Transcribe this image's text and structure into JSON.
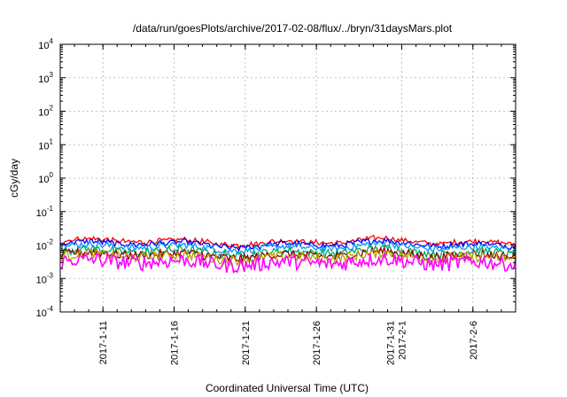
{
  "chart_data": {
    "type": "line",
    "title": "/data/run/goesPlots/archive/2017-02-08/flux/../bryn/31daysMars.plot",
    "xlabel": "Coordinated Universal Time (UTC)",
    "ylabel": "cGy/day",
    "yscale": "log",
    "ylim": [
      0.0001,
      10000
    ],
    "xlim": [
      "2017-01-08",
      "2017-02-09"
    ],
    "grid": true,
    "y_ticks": [
      {
        "base": "10",
        "exp": "-4",
        "value": 0.0001
      },
      {
        "base": "10",
        "exp": "-3",
        "value": 0.001
      },
      {
        "base": "10",
        "exp": "-2",
        "value": 0.01
      },
      {
        "base": "10",
        "exp": "-1",
        "value": 0.1
      },
      {
        "base": "10",
        "exp": "0",
        "value": 1
      },
      {
        "base": "10",
        "exp": "1",
        "value": 10
      },
      {
        "base": "10",
        "exp": "2",
        "value": 100
      },
      {
        "base": "10",
        "exp": "3",
        "value": 1000
      },
      {
        "base": "10",
        "exp": "4",
        "value": 10000
      }
    ],
    "x_ticks": [
      {
        "label": [
          "2017-1-11"
        ],
        "date": "2017-01-11"
      },
      {
        "label": [
          "2017-1-16"
        ],
        "date": "2017-01-16"
      },
      {
        "label": [
          "2017-1-21"
        ],
        "date": "2017-01-21"
      },
      {
        "label": [
          "2017-1-26"
        ],
        "date": "2017-01-26"
      },
      {
        "label": [
          "2017-1-31",
          "2017-2-1"
        ],
        "date": "2017-02-01"
      },
      {
        "label": [
          "2017-2-6"
        ],
        "date": "2017-02-06"
      }
    ],
    "series": [
      {
        "color": "#ff0000",
        "level": 0.0125
      },
      {
        "color": "#0000ff",
        "level": 0.0105
      },
      {
        "color": "#0099ff",
        "level": 0.0085
      },
      {
        "color": "#00aa66",
        "level": 0.0062
      },
      {
        "color": "#8b0000",
        "level": 0.005
      },
      {
        "color": "#b8a000",
        "level": 0.0044
      },
      {
        "color": "#ff00ff",
        "level": 0.003
      }
    ]
  }
}
